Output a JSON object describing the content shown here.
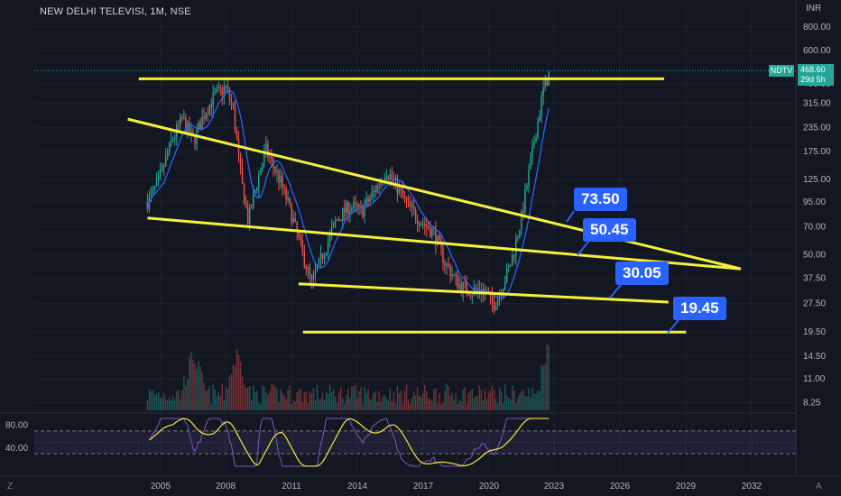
{
  "symbol_title": "NEW DELHI TELEVISI, 1M, NSE",
  "currency_label": "INR",
  "ticker_badge": "NDTV",
  "last_price": "468.60",
  "countdown": "29d 5h",
  "corner_left": "Z",
  "corner_right": "A",
  "colors": {
    "background": "#131722",
    "up": "#26a69a",
    "down": "#ef5350",
    "trendline": "#f5f03a",
    "callout": "#2962ff",
    "rsi": "#7e57c2",
    "rsi_ma": "#f5e642"
  },
  "callouts": [
    "73.50",
    "50.45",
    "30.05",
    "19.45"
  ],
  "chart_data": {
    "type": "candlestick",
    "title": "NEW DELHI TELEVISI, 1M, NSE",
    "scale": "log",
    "x_ticks": [
      "2005",
      "2008",
      "2011",
      "2014",
      "2017",
      "2020",
      "2023",
      "2026",
      "2029",
      "2032"
    ],
    "y_ticks": [
      "800.00",
      "600.00",
      "400.00",
      "315.00",
      "235.00",
      "175.00",
      "125.00",
      "95.00",
      "70.00",
      "50.00",
      "37.50",
      "27.50",
      "19.50",
      "14.50",
      "11.00",
      "8.25"
    ],
    "price_path": [
      {
        "x": 2004.4,
        "price": 95
      },
      {
        "x": 2004.9,
        "price": 120
      },
      {
        "x": 2005.5,
        "price": 200
      },
      {
        "x": 2006.0,
        "price": 260
      },
      {
        "x": 2006.5,
        "price": 200
      },
      {
        "x": 2007.0,
        "price": 280
      },
      {
        "x": 2007.5,
        "price": 350
      },
      {
        "x": 2008.0,
        "price": 380
      },
      {
        "x": 2008.3,
        "price": 300
      },
      {
        "x": 2008.7,
        "price": 120
      },
      {
        "x": 2009.0,
        "price": 75
      },
      {
        "x": 2009.4,
        "price": 120
      },
      {
        "x": 2009.8,
        "price": 180
      },
      {
        "x": 2010.5,
        "price": 120
      },
      {
        "x": 2011.0,
        "price": 80
      },
      {
        "x": 2011.5,
        "price": 50
      },
      {
        "x": 2011.9,
        "price": 35
      },
      {
        "x": 2012.4,
        "price": 50
      },
      {
        "x": 2013.0,
        "price": 75
      },
      {
        "x": 2013.6,
        "price": 90
      },
      {
        "x": 2014.2,
        "price": 85
      },
      {
        "x": 2014.8,
        "price": 110
      },
      {
        "x": 2015.3,
        "price": 140
      },
      {
        "x": 2015.8,
        "price": 115
      },
      {
        "x": 2016.3,
        "price": 90
      },
      {
        "x": 2016.9,
        "price": 75
      },
      {
        "x": 2017.5,
        "price": 65
      },
      {
        "x": 2018.0,
        "price": 45
      },
      {
        "x": 2018.6,
        "price": 35
      },
      {
        "x": 2019.2,
        "price": 32
      },
      {
        "x": 2019.7,
        "price": 33
      },
      {
        "x": 2020.2,
        "price": 27
      },
      {
        "x": 2020.6,
        "price": 34
      },
      {
        "x": 2021.0,
        "price": 45
      },
      {
        "x": 2021.5,
        "price": 80
      },
      {
        "x": 2022.0,
        "price": 180
      },
      {
        "x": 2022.5,
        "price": 380
      },
      {
        "x": 2022.8,
        "price": 468.6
      }
    ],
    "ohlc_approx": {
      "last": 468.6,
      "all_time_high": 560,
      "all_time_low": 19.45
    },
    "volume_peaks": [
      {
        "x": 2006.5,
        "vol": "high"
      },
      {
        "x": 2008.5,
        "vol": "high"
      },
      {
        "x": 2022.8,
        "vol": "very high"
      }
    ],
    "trendlines": [
      {
        "name": "resistance horizontal",
        "points": [
          {
            "x": 2004.0,
            "price": 425
          },
          {
            "x": 2028.0,
            "price": 425
          }
        ]
      },
      {
        "name": "descending resistance",
        "points": [
          {
            "x": 2003.5,
            "price": 260
          },
          {
            "x": 2031.5,
            "price": 42
          }
        ]
      },
      {
        "name": "lower channel",
        "points": [
          {
            "x": 2004.4,
            "price": 78
          },
          {
            "x": 2031.5,
            "price": 42
          }
        ]
      },
      {
        "name": "lower support",
        "points": [
          {
            "x": 2011.3,
            "price": 35
          },
          {
            "x": 2028.2,
            "price": 28
          }
        ]
      },
      {
        "name": "horizontal support",
        "points": [
          {
            "x": 2011.5,
            "price": 19.45
          },
          {
            "x": 2029.0,
            "price": 19.45
          }
        ]
      }
    ],
    "rsi": {
      "ticks": [
        "80.00",
        "40.00"
      ],
      "range": [
        0,
        100
      ],
      "bands": [
        70,
        30
      ],
      "last": 78
    }
  }
}
